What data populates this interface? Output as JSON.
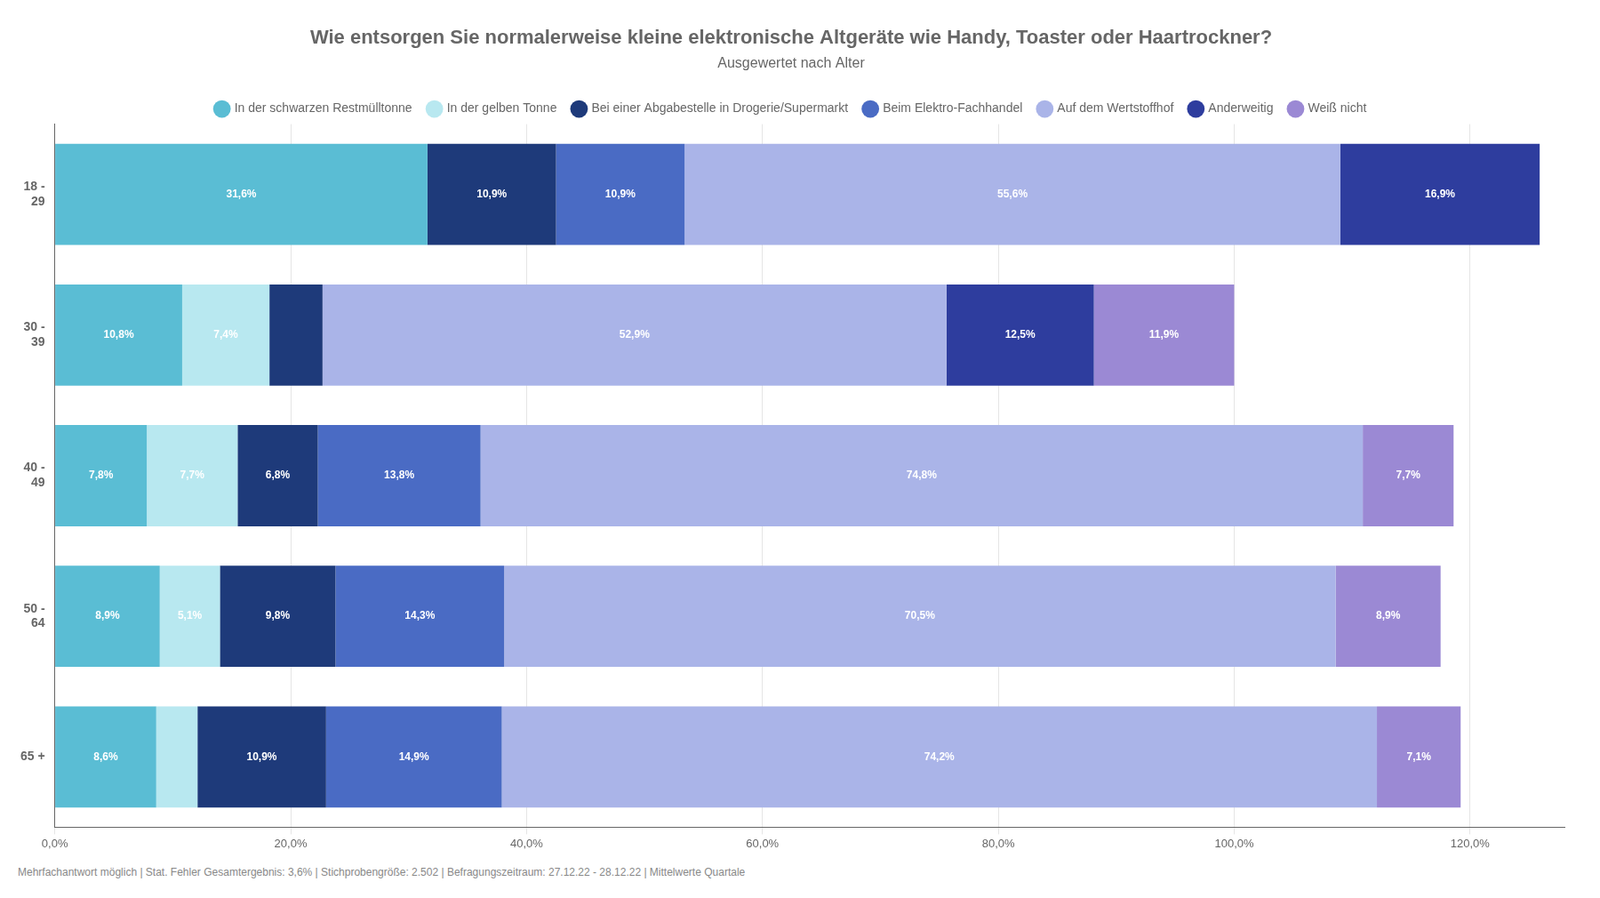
{
  "chart_data": {
    "type": "bar",
    "orientation": "horizontal",
    "stacked": true,
    "title": "Wie entsorgen Sie normalerweise kleine elektronische Altgeräte wie Handy, Toaster oder Haartrockner?",
    "subtitle": "Ausgewertet nach Alter",
    "footnote": "Mehrfachantwort möglich | Stat. Fehler Gesamtergebnis: 3,6% | Stichprobengröße: 2.502 | Befragungszeitraum: 27.12.22 - 28.12.22 | Mittelwerte Quartale",
    "categories": [
      "18 -\n29",
      "30 -\n39",
      "40 -\n49",
      "50 -\n64",
      "65 +"
    ],
    "series": [
      {
        "name": "In der schwarzen Restmülltonne",
        "color": "#5abdd4",
        "values": [
          31.6,
          10.8,
          7.8,
          8.9,
          8.6
        ],
        "value_labels": [
          "31,6%",
          "10,8%",
          "7,8%",
          "8,9%",
          "8,6%"
        ]
      },
      {
        "name": "In der gelben Tonne",
        "color": "#b8e8f0",
        "values": [
          0.0,
          7.4,
          7.7,
          5.1,
          3.5
        ],
        "value_labels": [
          null,
          "7,4%",
          "7,7%",
          "5,1%",
          null
        ]
      },
      {
        "name": "Bei einer Abgabestelle in Drogerie/Supermarkt",
        "color": "#1e3a7a",
        "values": [
          10.9,
          4.5,
          6.8,
          9.8,
          10.9
        ],
        "value_labels": [
          "10,9%",
          null,
          "6,8%",
          "9,8%",
          "10,9%"
        ]
      },
      {
        "name": "Beim Elektro-Fachhandel",
        "color": "#4a6bc4",
        "values": [
          10.9,
          0.0,
          13.8,
          14.3,
          14.9
        ],
        "value_labels": [
          "10,9%",
          null,
          "13,8%",
          "14,3%",
          "14,9%"
        ]
      },
      {
        "name": "Auf dem Wertstoffhof",
        "color": "#aab4e8",
        "values": [
          55.6,
          52.9,
          74.8,
          70.5,
          74.2
        ],
        "value_labels": [
          "55,6%",
          "52,9%",
          "74,8%",
          "70,5%",
          "74,2%"
        ]
      },
      {
        "name": "Anderweitig",
        "color": "#2e3d9e",
        "values": [
          16.9,
          12.5,
          0.0,
          0.0,
          0.0
        ],
        "value_labels": [
          "16,9%",
          "12,5%",
          null,
          null,
          null
        ]
      },
      {
        "name": "Weiß nicht",
        "color": "#9b89d4",
        "values": [
          0.0,
          11.9,
          7.7,
          8.9,
          7.1
        ],
        "value_labels": [
          null,
          "11,9%",
          "7,7%",
          "8,9%",
          "7,1%"
        ]
      }
    ],
    "xlim": [
      0,
      128
    ],
    "xticks": [
      {
        "value": 0,
        "label": "0,0%"
      },
      {
        "value": 20,
        "label": "20,0%"
      },
      {
        "value": 40,
        "label": "40,0%"
      },
      {
        "value": 60,
        "label": "60,0%"
      },
      {
        "value": 80,
        "label": "80,0%"
      },
      {
        "value": 100,
        "label": "100,0%"
      },
      {
        "value": 120,
        "label": "120,0%"
      }
    ],
    "grid": true,
    "legend": "top",
    "data_labels": true
  }
}
